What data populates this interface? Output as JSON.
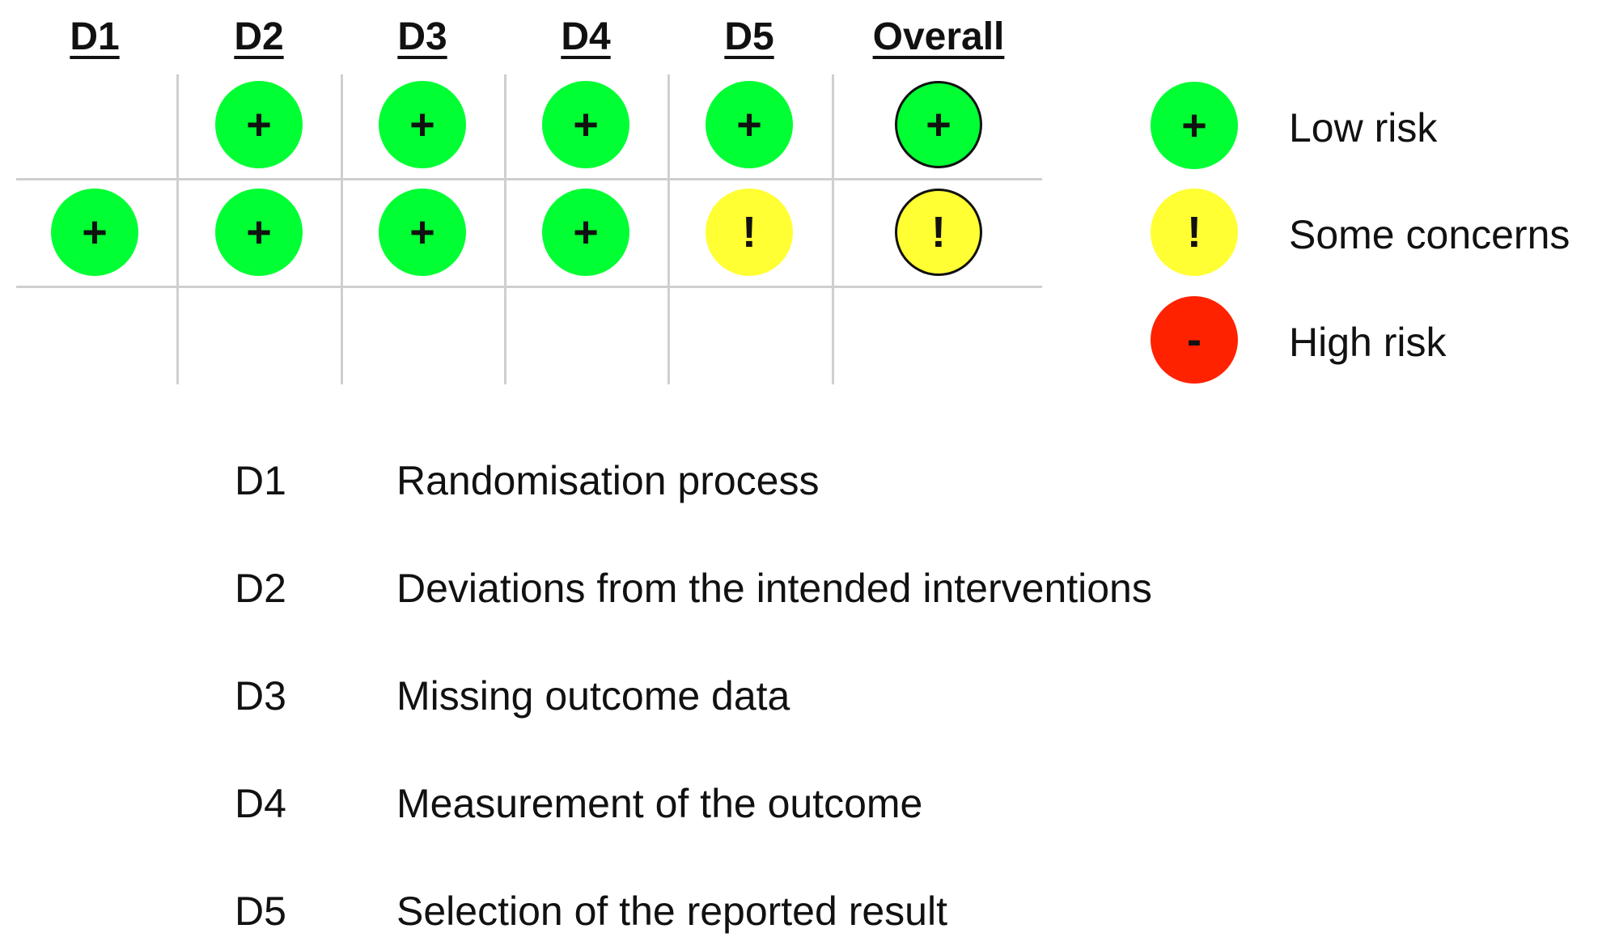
{
  "headers": [
    "D1",
    "D2",
    "D3",
    "D4",
    "D5",
    "Overall"
  ],
  "rows": [
    [
      "",
      "+",
      "+",
      "+",
      "+",
      "+"
    ],
    [
      "+",
      "+",
      "+",
      "+",
      "!",
      "!"
    ],
    [
      "",
      "",
      "",
      "",
      "",
      ""
    ]
  ],
  "legend": [
    {
      "symbol": "+",
      "label": "Low risk",
      "color": "#00ff33"
    },
    {
      "symbol": "!",
      "label": "Some concerns",
      "color": "#ffff33"
    },
    {
      "symbol": "-",
      "label": "High risk",
      "color": "#ff2200"
    }
  ],
  "key": [
    {
      "code": "D1",
      "text": "Randomisation process"
    },
    {
      "code": "D2",
      "text": "Deviations from the intended interventions"
    },
    {
      "code": "D3",
      "text": "Missing outcome data"
    },
    {
      "code": "D4",
      "text": "Measurement of the outcome"
    },
    {
      "code": "D5",
      "text": "Selection of the reported result"
    }
  ]
}
